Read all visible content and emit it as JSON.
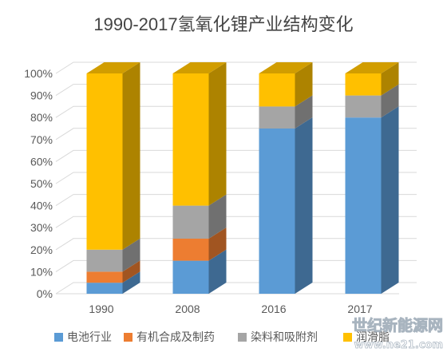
{
  "chart_data": {
    "type": "bar",
    "stacked": true,
    "three_d": true,
    "title": "1990-2017氢氧化锂产业结构变化",
    "categories": [
      "1990",
      "2008",
      "2016",
      "2017"
    ],
    "series": [
      {
        "name": "电池行业",
        "color": "#5B9BD5",
        "values": [
          5,
          15,
          75,
          80
        ]
      },
      {
        "name": "有机合成及制药",
        "color": "#ED7D31",
        "values": [
          5,
          10,
          0,
          0
        ]
      },
      {
        "name": "染料和吸附剂",
        "color": "#A5A5A5",
        "values": [
          10,
          15,
          10,
          10
        ]
      },
      {
        "name": "润滑脂",
        "color": "#FFC000",
        "values": [
          80,
          60,
          15,
          10
        ]
      }
    ],
    "ylim": [
      0,
      100
    ],
    "yticks": [
      "0%",
      "10%",
      "20%",
      "30%",
      "40%",
      "50%",
      "60%",
      "70%",
      "80%",
      "90%",
      "100%"
    ],
    "grid": true,
    "legend_position": "bottom"
  },
  "watermark": {
    "text": "世纪新能源网",
    "subtext": "www.ne21.com"
  }
}
